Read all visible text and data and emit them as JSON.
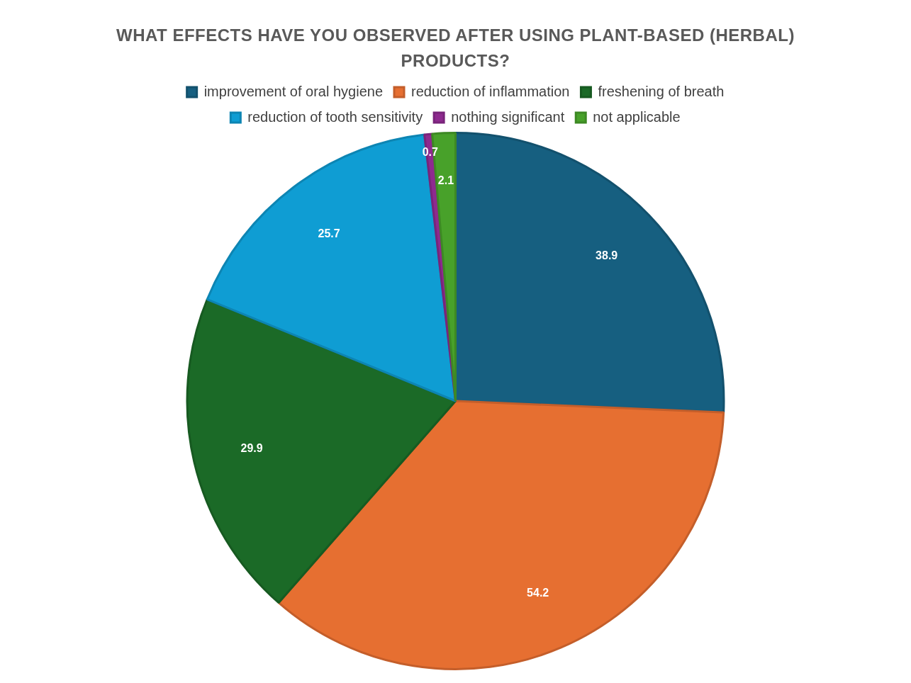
{
  "chart_data": {
    "type": "pie",
    "title": "WHAT EFFECTS HAVE YOU OBSERVED AFTER USING PLANT-BASED (HERBAL) PRODUCTS?",
    "categories": [
      "improvement of oral hygiene",
      "reduction of inflammation",
      "freshening of breath",
      "reduction of tooth sensitivity",
      "nothing significant",
      "not applicable"
    ],
    "values": [
      38.9,
      54.2,
      29.9,
      25.7,
      0.7,
      2.1
    ],
    "colors": [
      "#165f80",
      "#e66f31",
      "#1b6a27",
      "#0f9dd3",
      "#8e2a8f",
      "#48a12a"
    ],
    "data_labels": true,
    "legend": "top"
  }
}
